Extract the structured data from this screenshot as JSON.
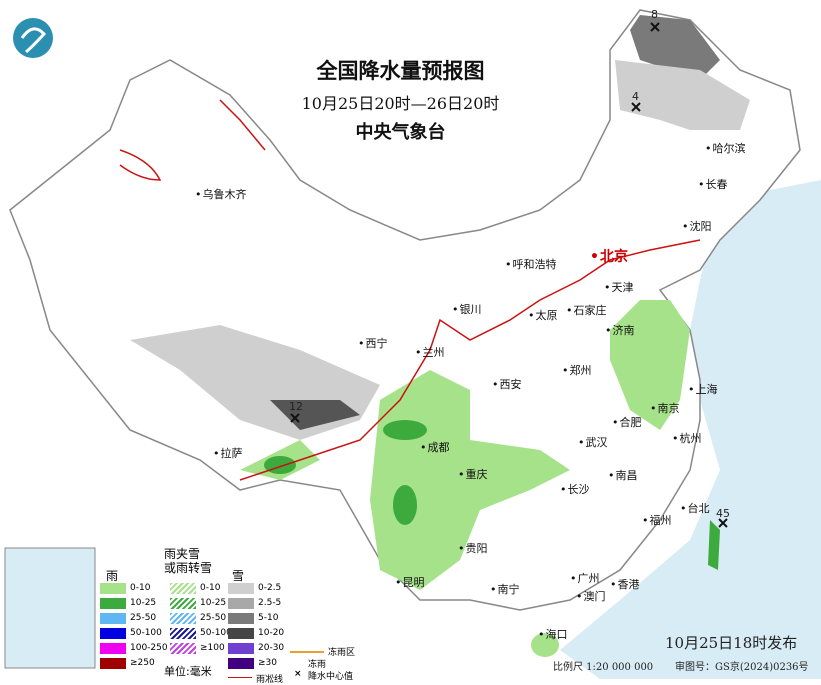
{
  "header": {
    "title": "全国降水量预报图",
    "period": "10月25日20时—26日20时",
    "issuer": "中央气象台"
  },
  "cities": [
    {
      "name": "乌鲁木齐"
    },
    {
      "name": "哈尔滨"
    },
    {
      "name": "长春"
    },
    {
      "name": "沈阳"
    },
    {
      "name": "呼和浩特"
    },
    {
      "name": "北京",
      "capital": true
    },
    {
      "name": "天津"
    },
    {
      "name": "石家庄"
    },
    {
      "name": "太原"
    },
    {
      "name": "银川"
    },
    {
      "name": "西宁"
    },
    {
      "name": "兰州"
    },
    {
      "name": "济南"
    },
    {
      "name": "郑州"
    },
    {
      "name": "西安"
    },
    {
      "name": "合肥"
    },
    {
      "name": "南京"
    },
    {
      "name": "上海"
    },
    {
      "name": "杭州"
    },
    {
      "name": "拉萨"
    },
    {
      "name": "成都"
    },
    {
      "name": "重庆"
    },
    {
      "name": "武汉"
    },
    {
      "name": "长沙"
    },
    {
      "name": "南昌"
    },
    {
      "name": "贵阳"
    },
    {
      "name": "昆明"
    },
    {
      "name": "福州"
    },
    {
      "name": "台北"
    },
    {
      "name": "南宁"
    },
    {
      "name": "广州"
    },
    {
      "name": "澳门"
    },
    {
      "name": "香港"
    },
    {
      "name": "海口"
    }
  ],
  "centers": [
    "8",
    "4",
    "12",
    "45"
  ],
  "legend": {
    "rain": {
      "title": "雨",
      "items": [
        {
          "label": "0-10",
          "color": "#a6e28a"
        },
        {
          "label": "10-25",
          "color": "#3daa3d"
        },
        {
          "label": "25-50",
          "color": "#5fb6f2"
        },
        {
          "label": "50-100",
          "color": "#0000e0"
        },
        {
          "label": "100-250",
          "color": "#f000f0"
        },
        {
          "label": "≥250",
          "color": "#a00000"
        }
      ]
    },
    "sleet": {
      "title1": "雨夹雪",
      "title2": "或雨转雪",
      "items": [
        {
          "label": "0-10",
          "color": "#a6e28a"
        },
        {
          "label": "10-25",
          "color": "#3daa3d"
        },
        {
          "label": "25-50",
          "color": "#5fb6f2"
        },
        {
          "label": "50-100",
          "color": "#1a1a90"
        },
        {
          "label": "≥100",
          "color": "#c040e0"
        }
      ]
    },
    "snow": {
      "title": "雪",
      "items": [
        {
          "label": "0-2.5",
          "color": "#cfcfcf"
        },
        {
          "label": "2.5-5",
          "color": "#a8a8a8"
        },
        {
          "label": "5-10",
          "color": "#7a7a7a"
        },
        {
          "label": "10-20",
          "color": "#454545"
        },
        {
          "label": "20-30",
          "color": "#7040d0"
        },
        {
          "label": "≥30",
          "color": "#400080"
        }
      ]
    },
    "unit": "单位:毫米",
    "freezing_line": "雨凇线",
    "freezing_rain_zone": "冻雨区",
    "freezing_rain": "冻雨",
    "precip_center": "降水中心值"
  },
  "footer": {
    "issued": "10月25日18时发布",
    "scale": "比例尺 1:20 000 000",
    "approval": "审图号：GS京(2024)0236号"
  },
  "colors": {
    "sea": "#d8ecf6",
    "land": "#ffffff",
    "rain_light": "#a6e28a",
    "rain_mod": "#3daa3d",
    "frost_line": "#cc1111"
  }
}
